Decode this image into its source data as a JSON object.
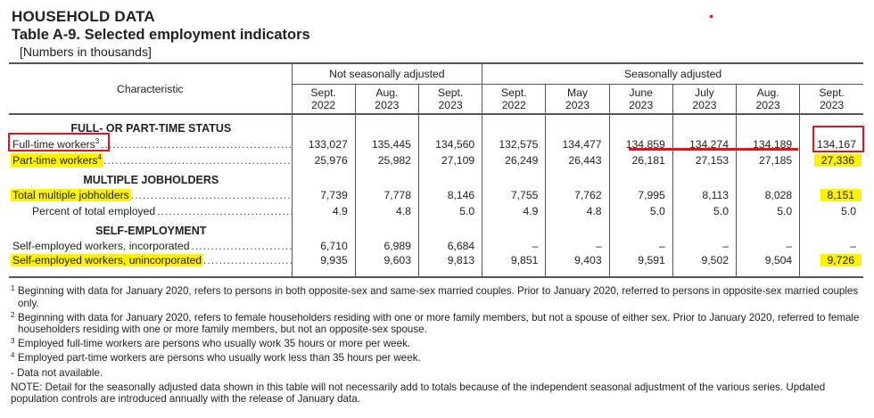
{
  "header": {
    "section": "HOUSEHOLD DATA",
    "table_title": "Table A-9. Selected employment indicators",
    "units": "[Numbers in thousands]"
  },
  "columns": {
    "characteristic": "Characteristic",
    "group_nsa": "Not seasonally adjusted",
    "group_sa": "Seasonally adjusted",
    "periods": [
      [
        "Sept.",
        "2022"
      ],
      [
        "Aug.",
        "2023"
      ],
      [
        "Sept.",
        "2023"
      ],
      [
        "Sept.",
        "2022"
      ],
      [
        "May",
        "2023"
      ],
      [
        "June",
        "2023"
      ],
      [
        "July",
        "2023"
      ],
      [
        "Aug.",
        "2023"
      ],
      [
        "Sept.",
        "2023"
      ]
    ]
  },
  "rows": [
    {
      "type": "section",
      "label": "FULL- OR PART-TIME STATUS"
    },
    {
      "label": "Full-time workers",
      "sup": "3",
      "values": [
        "133,027",
        "135,445",
        "134,560",
        "132,575",
        "134,477",
        "134,859",
        "134,274",
        "134,189",
        "134,167"
      ]
    },
    {
      "label": "Part-time workers",
      "sup": "4",
      "highlight": true,
      "highlight_cells": [
        8
      ],
      "values": [
        "25,976",
        "25,982",
        "27,109",
        "26,249",
        "26,443",
        "26,181",
        "27,153",
        "27,185",
        "27,336"
      ]
    },
    {
      "type": "section",
      "label": "MULTIPLE JOBHOLDERS"
    },
    {
      "label": "Total multiple jobholders",
      "highlight": true,
      "highlight_cells": [
        8
      ],
      "values": [
        "7,739",
        "7,778",
        "8,146",
        "7,755",
        "7,762",
        "7,995",
        "8,113",
        "8,028",
        "8,151"
      ]
    },
    {
      "label": "Percent of total employed",
      "indent": true,
      "values": [
        "4.9",
        "4.8",
        "5.0",
        "4.9",
        "4.8",
        "5.0",
        "5.0",
        "5.0",
        "5.0"
      ]
    },
    {
      "type": "section",
      "label": "SELF-EMPLOYMENT"
    },
    {
      "label": "Self-employed workers, incorporated",
      "values": [
        "6,710",
        "6,989",
        "6,684",
        "–",
        "–",
        "–",
        "–",
        "–",
        "–"
      ]
    },
    {
      "label": "Self-employed workers, unincorporated",
      "highlight": true,
      "highlight_cells": [
        8
      ],
      "values": [
        "9,935",
        "9,603",
        "9,813",
        "9,851",
        "9,403",
        "9,591",
        "9,502",
        "9,504",
        "9,726"
      ]
    }
  ],
  "footnotes": [
    {
      "mark": "1",
      "text": "Beginning with data for January 2020, refers to persons in both opposite-sex and same-sex married couples. Prior to January 2020, referred to persons in opposite-sex married couples only."
    },
    {
      "mark": "2",
      "text": "Beginning with data for January 2020, refers to female householders residing with one or more family members, but not a spouse of either sex. Prior to January 2020, referred to female householders residing with one or more family members, but not an opposite-sex spouse."
    },
    {
      "mark": "3",
      "text": "Employed full-time workers are persons who usually work 35 hours or more per week."
    },
    {
      "mark": "4",
      "text": "Employed part-time workers are persons who usually work less than 35 hours per week."
    },
    {
      "mark": "",
      "text": "- Data not available."
    },
    {
      "mark": "",
      "text": "NOTE: Detail for the seasonally adjusted data shown in this table will not necessarily add to totals because of the independent seasonal adjustment of the various series. Updated population controls are introduced annually with the release of January data."
    }
  ],
  "annotation_colors": {
    "red": "#e8101e",
    "yellow": "#fff200"
  }
}
